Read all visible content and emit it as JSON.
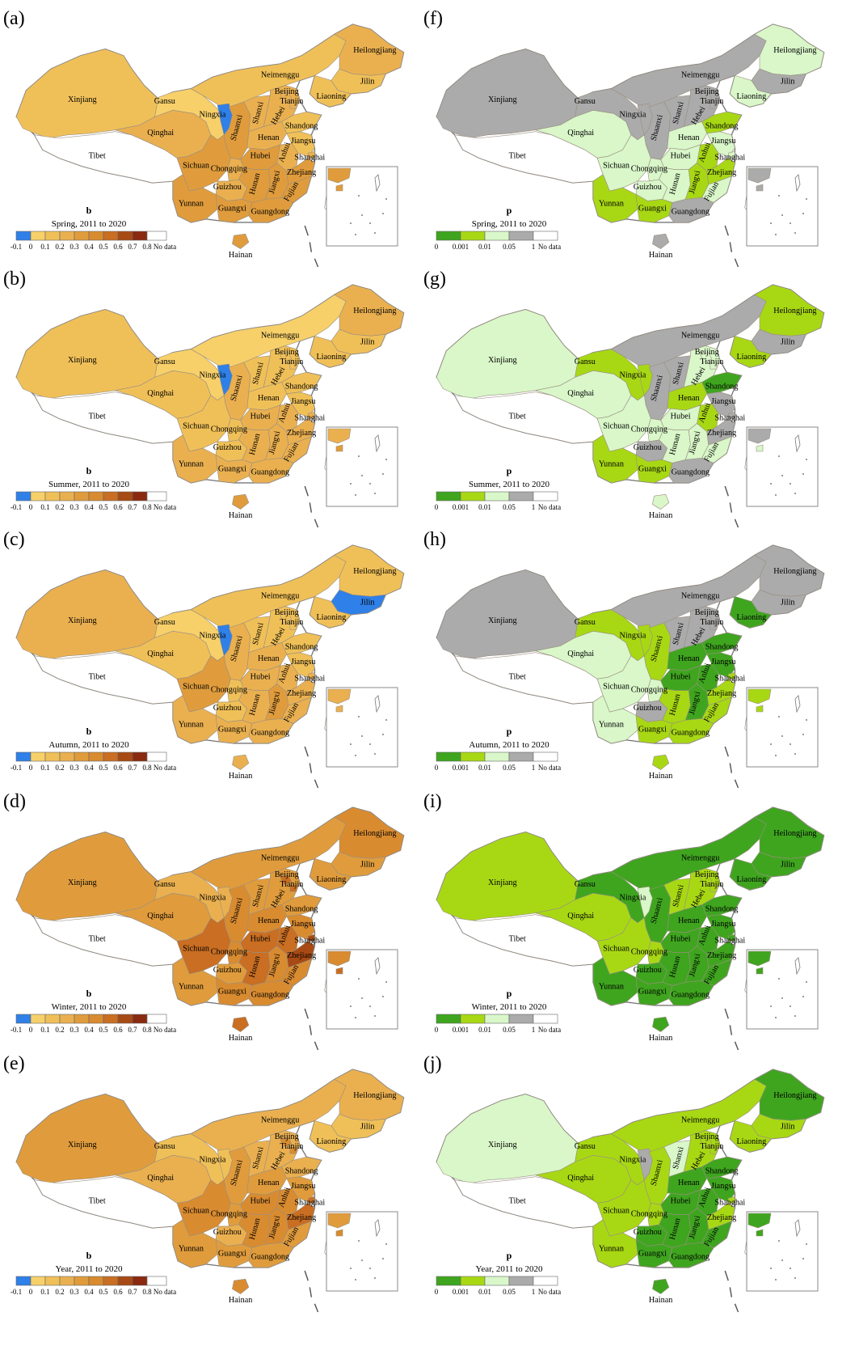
{
  "colors": {
    "b": {
      "-0.1": "#2f80e8",
      "0": "#f7d06a",
      "0.1": "#f0c058",
      "0.2": "#eab050",
      "0.3": "#e09c3c",
      "0.4": "#d98b30",
      "0.5": "#c96e22",
      "0.6": "#a84a14",
      "0.7": "#8a2a10",
      "nodata": "#ffffff"
    },
    "p": {
      "0": "#3fa51f",
      "0.001": "#a8d814",
      "0.01": "#d9f7c9",
      "0.05": "#ababab",
      "nodata": "#ffffff"
    },
    "outline": "#777777"
  },
  "b_legend": {
    "ticks": [
      "-0.1",
      "0",
      "0.1",
      "0.2",
      "0.3",
      "0.4",
      "0.5",
      "0.6",
      "0.7",
      "0.8"
    ],
    "nodata_label": "No data",
    "classes": [
      "-0.1",
      "0",
      "0.1",
      "0.2",
      "0.3",
      "0.4",
      "0.5",
      "0.6",
      "0.7"
    ]
  },
  "p_legend": {
    "ticks": [
      "0",
      "0.001",
      "0.01",
      "0.05",
      "1"
    ],
    "nodata_label": "No data",
    "classes": [
      "0",
      "0.001",
      "0.01",
      "0.05"
    ]
  },
  "panels": [
    {
      "letter": "(a)",
      "var": "b",
      "period": "Spring, 2011 to 2020",
      "values": {
        "Xinjiang": "0.1",
        "Tibet": "nodata",
        "Qinghai": "0.2",
        "Gansu": "0",
        "Neimenggu": "0.1",
        "Heilongjiang": "0.2",
        "Jilin": "0.1",
        "Liaoning": "0.1",
        "Ningxia": "-0.1",
        "Shaanxi": "0.3",
        "Shanxi": "0.2",
        "Hebei": "0.2",
        "Beijing": "0.2",
        "Tianjin": "0.2",
        "Shandong": "0.1",
        "Henan": "0.2",
        "Jiangsu": "0.1",
        "Anhui": "0.2",
        "Shanghai": "0.2",
        "Hubei": "0.3",
        "Sichuan": "0.3",
        "Chongqing": "0.2",
        "Guizhou": "0.2",
        "Hunan": "0.3",
        "Jiangxi": "0.3",
        "Zhejiang": "0.3",
        "Fujian": "0.3",
        "Yunnan": "0.3",
        "Guangxi": "0.3",
        "Guangdong": "0.3",
        "Hainan": "0.3",
        "Taiwan": "nodata"
      }
    },
    {
      "letter": "(b)",
      "var": "b",
      "period": "Summer, 2011 to 2020",
      "values": {
        "Xinjiang": "0.1",
        "Tibet": "nodata",
        "Qinghai": "0.1",
        "Gansu": "0",
        "Neimenggu": "0",
        "Heilongjiang": "0.2",
        "Jilin": "0.1",
        "Liaoning": "0.1",
        "Ningxia": "-0.1",
        "Shaanxi": "0.2",
        "Shanxi": "0.1",
        "Hebei": "0.1",
        "Beijing": "0.1",
        "Tianjin": "0.1",
        "Shandong": "0.1",
        "Henan": "0.1",
        "Jiangsu": "0.1",
        "Anhui": "0.2",
        "Shanghai": "0.2",
        "Hubei": "0.2",
        "Sichuan": "0.1",
        "Chongqing": "0.1",
        "Guizhou": "0.1",
        "Hunan": "0.2",
        "Jiangxi": "0.2",
        "Zhejiang": "0.2",
        "Fujian": "0.2",
        "Yunnan": "0.2",
        "Guangxi": "0.2",
        "Guangdong": "0.2",
        "Hainan": "0.3",
        "Taiwan": "nodata"
      }
    },
    {
      "letter": "(c)",
      "var": "b",
      "period": "Autumn, 2011 to 2020",
      "values": {
        "Xinjiang": "0.2",
        "Tibet": "nodata",
        "Qinghai": "0.1",
        "Gansu": "0",
        "Neimenggu": "0.1",
        "Heilongjiang": "0.1",
        "Jilin": "-0.1",
        "Liaoning": "0.1",
        "Ningxia": "-0.1",
        "Shaanxi": "0.2",
        "Shanxi": "0.1",
        "Hebei": "0.1",
        "Beijing": "0.1",
        "Tianjin": "0.1",
        "Shandong": "0.1",
        "Henan": "0.2",
        "Jiangsu": "0.1",
        "Anhui": "0.2",
        "Shanghai": "0.2",
        "Hubei": "0.2",
        "Sichuan": "0.3",
        "Chongqing": "0.1",
        "Guizhou": "0.1",
        "Hunan": "0.2",
        "Jiangxi": "0.3",
        "Zhejiang": "0.2",
        "Fujian": "0.2",
        "Yunnan": "0.2",
        "Guangxi": "0.2",
        "Guangdong": "0.2",
        "Hainan": "0.2",
        "Taiwan": "nodata"
      }
    },
    {
      "letter": "(d)",
      "var": "b",
      "period": "Winter, 2011 to 2020",
      "values": {
        "Xinjiang": "0.3",
        "Tibet": "nodata",
        "Qinghai": "0.3",
        "Gansu": "0.2",
        "Neimenggu": "0.3",
        "Heilongjiang": "0.4",
        "Jilin": "0.3",
        "Liaoning": "0.3",
        "Ningxia": "0.2",
        "Shaanxi": "0.4",
        "Shanxi": "0.3",
        "Hebei": "0.3",
        "Beijing": "0.5",
        "Tianjin": "0.5",
        "Shandong": "0.3",
        "Henan": "0.4",
        "Jiangsu": "0.4",
        "Anhui": "0.5",
        "Shanghai": "0.6",
        "Hubei": "0.5",
        "Sichuan": "0.5",
        "Chongqing": "0.4",
        "Guizhou": "0.3",
        "Hunan": "0.5",
        "Jiangxi": "0.4",
        "Zhejiang": "0.6",
        "Fujian": "0.4",
        "Yunnan": "0.3",
        "Guangxi": "0.4",
        "Guangdong": "0.4",
        "Hainan": "0.5",
        "Taiwan": "nodata"
      }
    },
    {
      "letter": "(e)",
      "var": "b",
      "period": "Year, 2011 to 2020",
      "values": {
        "Xinjiang": "0.3",
        "Tibet": "nodata",
        "Qinghai": "0.2",
        "Gansu": "0.1",
        "Neimenggu": "0.2",
        "Heilongjiang": "0.2",
        "Jilin": "0.1",
        "Liaoning": "0.1",
        "Ningxia": "0.1",
        "Shaanxi": "0.3",
        "Shanxi": "0.2",
        "Hebei": "0.2",
        "Beijing": "0.4",
        "Tianjin": "0.4",
        "Shandong": "0.2",
        "Henan": "0.3",
        "Jiangsu": "0.3",
        "Anhui": "0.4",
        "Shanghai": "0.5",
        "Hubei": "0.4",
        "Sichuan": "0.4",
        "Chongqing": "0.3",
        "Guizhou": "0.2",
        "Hunan": "0.4",
        "Jiangxi": "0.4",
        "Zhejiang": "0.5",
        "Fujian": "0.3",
        "Yunnan": "0.3",
        "Guangxi": "0.3",
        "Guangdong": "0.3",
        "Hainan": "0.4",
        "Taiwan": "nodata"
      }
    },
    {
      "letter": "(f)",
      "var": "p",
      "period": "Spring, 2011 to 2020",
      "values": {
        "Xinjiang": "0.05",
        "Tibet": "nodata",
        "Qinghai": "0.01",
        "Gansu": "0.05",
        "Neimenggu": "0.05",
        "Heilongjiang": "0.01",
        "Jilin": "0.05",
        "Liaoning": "0.01",
        "Ningxia": "0.05",
        "Shaanxi": "0.05",
        "Shanxi": "0.05",
        "Hebei": "0.05",
        "Beijing": "0.05",
        "Tianjin": "0.05",
        "Shandong": "0.001",
        "Henan": "0.01",
        "Jiangsu": "0.01",
        "Anhui": "0.001",
        "Shanghai": "0.01",
        "Hubei": "0.01",
        "Sichuan": "0.01",
        "Chongqing": "0.01",
        "Guizhou": "0.01",
        "Hunan": "0.01",
        "Jiangxi": "0.001",
        "Zhejiang": "0.001",
        "Fujian": "0.01",
        "Yunnan": "0.001",
        "Guangxi": "0.001",
        "Guangdong": "0.05",
        "Hainan": "0.05",
        "Taiwan": "nodata"
      }
    },
    {
      "letter": "(g)",
      "var": "p",
      "period": "Summer, 2011 to 2020",
      "values": {
        "Xinjiang": "0.01",
        "Tibet": "nodata",
        "Qinghai": "0.01",
        "Gansu": "0.001",
        "Neimenggu": "0.05",
        "Heilongjiang": "0.001",
        "Jilin": "0.05",
        "Liaoning": "0.001",
        "Ningxia": "0.001",
        "Shaanxi": "0.05",
        "Shanxi": "0.05",
        "Hebei": "0.01",
        "Beijing": "0.01",
        "Tianjin": "0.01",
        "Shandong": "0",
        "Henan": "0.001",
        "Jiangsu": "0.05",
        "Anhui": "0.001",
        "Shanghai": "0.05",
        "Hubei": "0.01",
        "Sichuan": "0.01",
        "Chongqing": "0.01",
        "Guizhou": "0.05",
        "Hunan": "0.01",
        "Jiangxi": "0.01",
        "Zhejiang": "0.05",
        "Fujian": "0.01",
        "Yunnan": "0.001",
        "Guangxi": "0.001",
        "Guangdong": "0.05",
        "Hainan": "0.01",
        "Taiwan": "nodata"
      }
    },
    {
      "letter": "(h)",
      "var": "p",
      "period": "Autumn, 2011 to 2020",
      "values": {
        "Xinjiang": "0.05",
        "Tibet": "nodata",
        "Qinghai": "0.01",
        "Gansu": "0.001",
        "Neimenggu": "0.05",
        "Heilongjiang": "0.05",
        "Jilin": "0.05",
        "Liaoning": "0",
        "Ningxia": "0.001",
        "Shaanxi": "0.001",
        "Shanxi": "0.05",
        "Hebei": "0.05",
        "Beijing": "0.05",
        "Tianjin": "0.05",
        "Shandong": "0",
        "Henan": "0",
        "Jiangsu": "0",
        "Anhui": "0",
        "Shanghai": "0.001",
        "Hubei": "0",
        "Sichuan": "0.01",
        "Chongqing": "0.01",
        "Guizhou": "0.05",
        "Hunan": "0.001",
        "Jiangxi": "0",
        "Zhejiang": "0.001",
        "Fujian": "0.001",
        "Yunnan": "0.01",
        "Guangxi": "0.001",
        "Guangdong": "0.001",
        "Hainan": "0.001",
        "Taiwan": "nodata"
      }
    },
    {
      "letter": "(i)",
      "var": "p",
      "period": "Winter, 2011 to 2020",
      "values": {
        "Xinjiang": "0.001",
        "Tibet": "nodata",
        "Qinghai": "0.001",
        "Gansu": "0",
        "Neimenggu": "0",
        "Heilongjiang": "0",
        "Jilin": "0",
        "Liaoning": "0",
        "Ningxia": "0.01",
        "Shaanxi": "0",
        "Shanxi": "0.001",
        "Hebei": "0.001",
        "Beijing": "0.001",
        "Tianjin": "0.001",
        "Shandong": "0",
        "Henan": "0",
        "Jiangsu": "0",
        "Anhui": "0",
        "Shanghai": "0",
        "Hubei": "0",
        "Sichuan": "0.001",
        "Chongqing": "0.001",
        "Guizhou": "0",
        "Hunan": "0",
        "Jiangxi": "0",
        "Zhejiang": "0",
        "Fujian": "0",
        "Yunnan": "0",
        "Guangxi": "0",
        "Guangdong": "0",
        "Hainan": "0",
        "Taiwan": "nodata"
      }
    },
    {
      "letter": "(j)",
      "var": "p",
      "period": "Year, 2011 to 2020",
      "values": {
        "Xinjiang": "0.01",
        "Tibet": "nodata",
        "Qinghai": "0.001",
        "Gansu": "0.001",
        "Neimenggu": "0.001",
        "Heilongjiang": "0",
        "Jilin": "0.001",
        "Liaoning": "0.001",
        "Ningxia": "0.05",
        "Shaanxi": "0.001",
        "Shanxi": "0.01",
        "Hebei": "0.001",
        "Beijing": "0.001",
        "Tianjin": "0.001",
        "Shandong": "0",
        "Henan": "0",
        "Jiangsu": "0",
        "Anhui": "0",
        "Shanghai": "0.001",
        "Hubei": "0",
        "Sichuan": "0.001",
        "Chongqing": "0.001",
        "Guizhou": "0",
        "Hunan": "0",
        "Jiangxi": "0",
        "Zhejiang": "0.001",
        "Fujian": "0",
        "Yunnan": "0.001",
        "Guangxi": "0",
        "Guangdong": "0",
        "Hainan": "0",
        "Taiwan": "nodata"
      }
    }
  ]
}
